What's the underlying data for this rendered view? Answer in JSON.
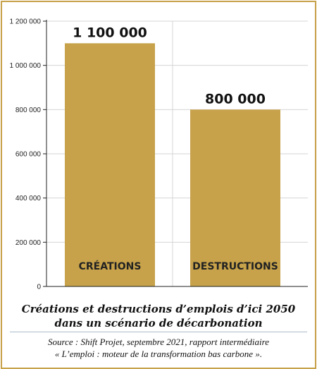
{
  "colors": {
    "bar": "#c7a24a",
    "border": "#c7a24a",
    "grid": "#d5d5d5",
    "axis": "#222222"
  },
  "chart_data": {
    "type": "bar",
    "categories": [
      "CRÉATIONS",
      "DESTRUCTIONS"
    ],
    "values": [
      1100000,
      800000
    ],
    "value_labels": [
      "1 100 000",
      "800 000"
    ],
    "ylim": [
      0,
      1200000
    ],
    "yticks": [
      0,
      200000,
      400000,
      600000,
      800000,
      1000000,
      1200000
    ],
    "ytick_labels": [
      "0",
      "200 000",
      "400 000",
      "600 000",
      "800 000",
      "1 000 000",
      "1 200 000"
    ],
    "grid": true,
    "title": "",
    "xlabel": "",
    "ylabel": ""
  },
  "caption": {
    "line1": "Créations et destructions d’emplois d’ici 2050",
    "line2": "dans un scénario de décarbonation"
  },
  "source": {
    "line1": "Source : Shift Projet, septembre 2021, rapport intermédiaire",
    "line2": "« L’emploi : moteur de la transformation bas carbone »."
  }
}
